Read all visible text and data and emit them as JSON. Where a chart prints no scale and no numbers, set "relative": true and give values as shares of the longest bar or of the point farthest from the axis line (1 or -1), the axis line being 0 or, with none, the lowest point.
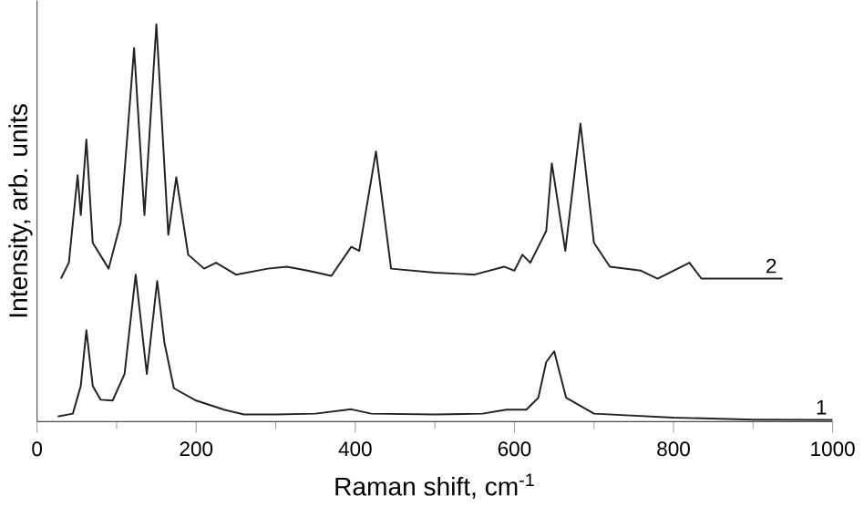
{
  "chart_data": {
    "type": "line",
    "relative": true,
    "xlabel": "Raman shift, cm$^{-1}$",
    "ylabel": "Intensity, arb. units",
    "xlim": [
      0,
      1000
    ],
    "xticks": [
      0,
      200,
      400,
      600,
      800,
      1000
    ],
    "tick_labels": "x",
    "grid": false,
    "legend": false,
    "marker": "none",
    "line_style": "solid",
    "series": [
      {
        "name": "1",
        "color": "#222222",
        "x": [
          26,
          45,
          55,
          62,
          70,
          80,
          95,
          110,
          124,
          138,
          151,
          160,
          172,
          200,
          235,
          260,
          300,
          350,
          395,
          420,
          500,
          560,
          590,
          615,
          630,
          640,
          650,
          665,
          700,
          800,
          900,
          1000
        ],
        "values": [
          0.013,
          0.02,
          0.09,
          0.23,
          0.09,
          0.055,
          0.053,
          0.12,
          0.37,
          0.12,
          0.354,
          0.2,
          0.084,
          0.053,
          0.03,
          0.018,
          0.018,
          0.02,
          0.031,
          0.02,
          0.018,
          0.02,
          0.03,
          0.03,
          0.06,
          0.15,
          0.177,
          0.06,
          0.02,
          0.01,
          0.005,
          0.004
        ]
      },
      {
        "name": "2",
        "color": "#222222",
        "x": [
          30,
          40,
          51,
          55,
          62,
          70,
          90,
          105,
          122,
          135,
          150,
          165,
          175,
          190,
          210,
          225,
          250,
          290,
          314,
          340,
          370,
          395,
          405,
          426,
          445,
          500,
          550,
          587,
          600,
          610,
          620,
          640,
          647,
          664,
          683,
          700,
          720,
          759,
          780,
          820,
          835,
          937
        ],
        "values": [
          0.36,
          0.4,
          0.62,
          0.52,
          0.71,
          0.45,
          0.385,
          0.5,
          0.94,
          0.52,
          1.0,
          0.47,
          0.615,
          0.42,
          0.385,
          0.4,
          0.37,
          0.385,
          0.39,
          0.38,
          0.367,
          0.44,
          0.43,
          0.68,
          0.385,
          0.375,
          0.37,
          0.39,
          0.38,
          0.42,
          0.4,
          0.48,
          0.65,
          0.43,
          0.75,
          0.45,
          0.39,
          0.38,
          0.36,
          0.4,
          0.36,
          0.36
        ]
      }
    ]
  }
}
